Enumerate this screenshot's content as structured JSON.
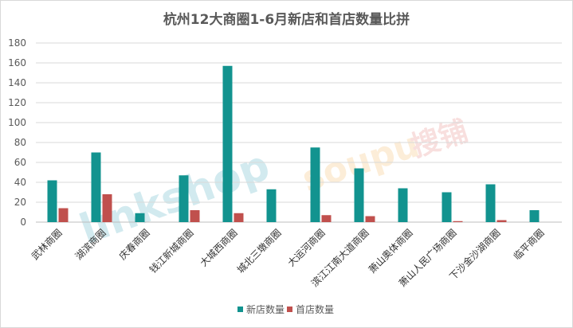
{
  "chart_data": {
    "type": "bar",
    "title": "杭州12大商圈1-6月新店和首店数量比拼",
    "categories": [
      "武林商圈",
      "湖滨商圈",
      "庆春商圈",
      "钱江新城商圈",
      "大城西商圈",
      "城北三墩商圈",
      "大运河商圈",
      "滨江江南大道商圈",
      "萧山奥体商圈",
      "萧山人民广场商圈",
      "下沙金沙湖商圈",
      "临平商圈"
    ],
    "series": [
      {
        "name": "新店数量",
        "color": "#12938f",
        "values": [
          42,
          70,
          9,
          47,
          157,
          33,
          75,
          54,
          34,
          30,
          38,
          12
        ]
      },
      {
        "name": "首店数量",
        "color": "#c0504d",
        "values": [
          14,
          28,
          0,
          12,
          9,
          0,
          7,
          6,
          0,
          1,
          2,
          0
        ]
      }
    ],
    "ylim": [
      0,
      180
    ],
    "yticks": [
      0,
      20,
      40,
      60,
      80,
      100,
      120,
      140,
      160,
      180
    ],
    "grid": true,
    "legend_position": "bottom"
  },
  "watermarks": [
    "linkshop",
    "联商网",
    "soupu.com",
    "搜铺"
  ]
}
